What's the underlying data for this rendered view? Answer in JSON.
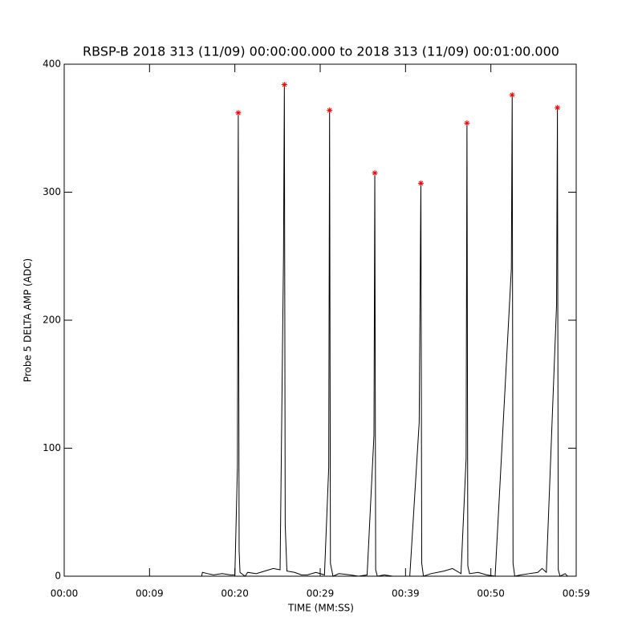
{
  "chart_data": {
    "type": "line",
    "title": "RBSP-B 2018 313 (11/09) 00:00:00.000 to 2018 313 (11/09) 00:01:00.000",
    "xlabel": "TIME (MM:SS)",
    "ylabel": "Probe 5 DELTA AMP (ADC)",
    "xlim": [
      0,
      60
    ],
    "ylim": [
      0,
      400
    ],
    "xticks": [
      {
        "value": 0,
        "label": "00:00"
      },
      {
        "value": 10,
        "label": "00:09"
      },
      {
        "value": 20,
        "label": "00:20"
      },
      {
        "value": 30,
        "label": "00:29"
      },
      {
        "value": 40,
        "label": "00:39"
      },
      {
        "value": 50,
        "label": "00:50"
      },
      {
        "value": 60,
        "label": "00:59"
      }
    ],
    "yticks": [
      0,
      100,
      200,
      300,
      400
    ],
    "series": [
      {
        "type": "line",
        "color": "#000000",
        "x": [
          0,
          16.1,
          16.2,
          16.8,
          17.5,
          18.5,
          19.5,
          20.0,
          20.3,
          20.4,
          20.5,
          20.6,
          21.2,
          21.5,
          22.5,
          23.5,
          24.5,
          25.3,
          25.7,
          25.8,
          25.9,
          26.1,
          27.0,
          27.8,
          28.5,
          29.5,
          30.5,
          31.0,
          31.1,
          31.2,
          31.5,
          32.2,
          33.5,
          34.5,
          35.5,
          36.3,
          36.4,
          36.5,
          36.7,
          37.5,
          38.5,
          39.5,
          40.5,
          41.6,
          41.8,
          41.9,
          42.1,
          43.0,
          44.5,
          45.5,
          46.5,
          47.1,
          47.2,
          47.3,
          47.5,
          48.5,
          49.5,
          50.5,
          52.4,
          52.5,
          52.6,
          52.8,
          53.5,
          54.5,
          55.5,
          56.0,
          56.5,
          57.7,
          57.8,
          57.9,
          58.1,
          58.7,
          59.0
        ],
        "values": [
          0,
          0,
          3,
          2,
          1,
          2,
          1,
          1,
          85,
          362,
          20,
          3,
          0,
          3,
          2,
          4,
          6,
          5,
          250,
          384,
          40,
          4,
          3,
          1,
          1,
          3,
          1,
          85,
          364,
          10,
          0,
          2,
          1,
          0,
          1,
          110,
          315,
          5,
          0,
          1,
          0,
          0,
          0,
          120,
          307,
          10,
          0,
          2,
          4,
          6,
          2,
          92,
          354,
          8,
          2,
          3,
          1,
          0,
          240,
          376,
          10,
          0,
          1,
          2,
          3,
          6,
          3,
          212,
          366,
          5,
          0,
          2,
          0
        ]
      },
      {
        "type": "scatter",
        "color": "#ff0000",
        "x": [
          20.4,
          25.8,
          31.1,
          36.4,
          41.8,
          47.2,
          52.5,
          57.8
        ],
        "values": [
          362,
          384,
          364,
          315,
          307,
          354,
          376,
          366
        ]
      }
    ]
  }
}
